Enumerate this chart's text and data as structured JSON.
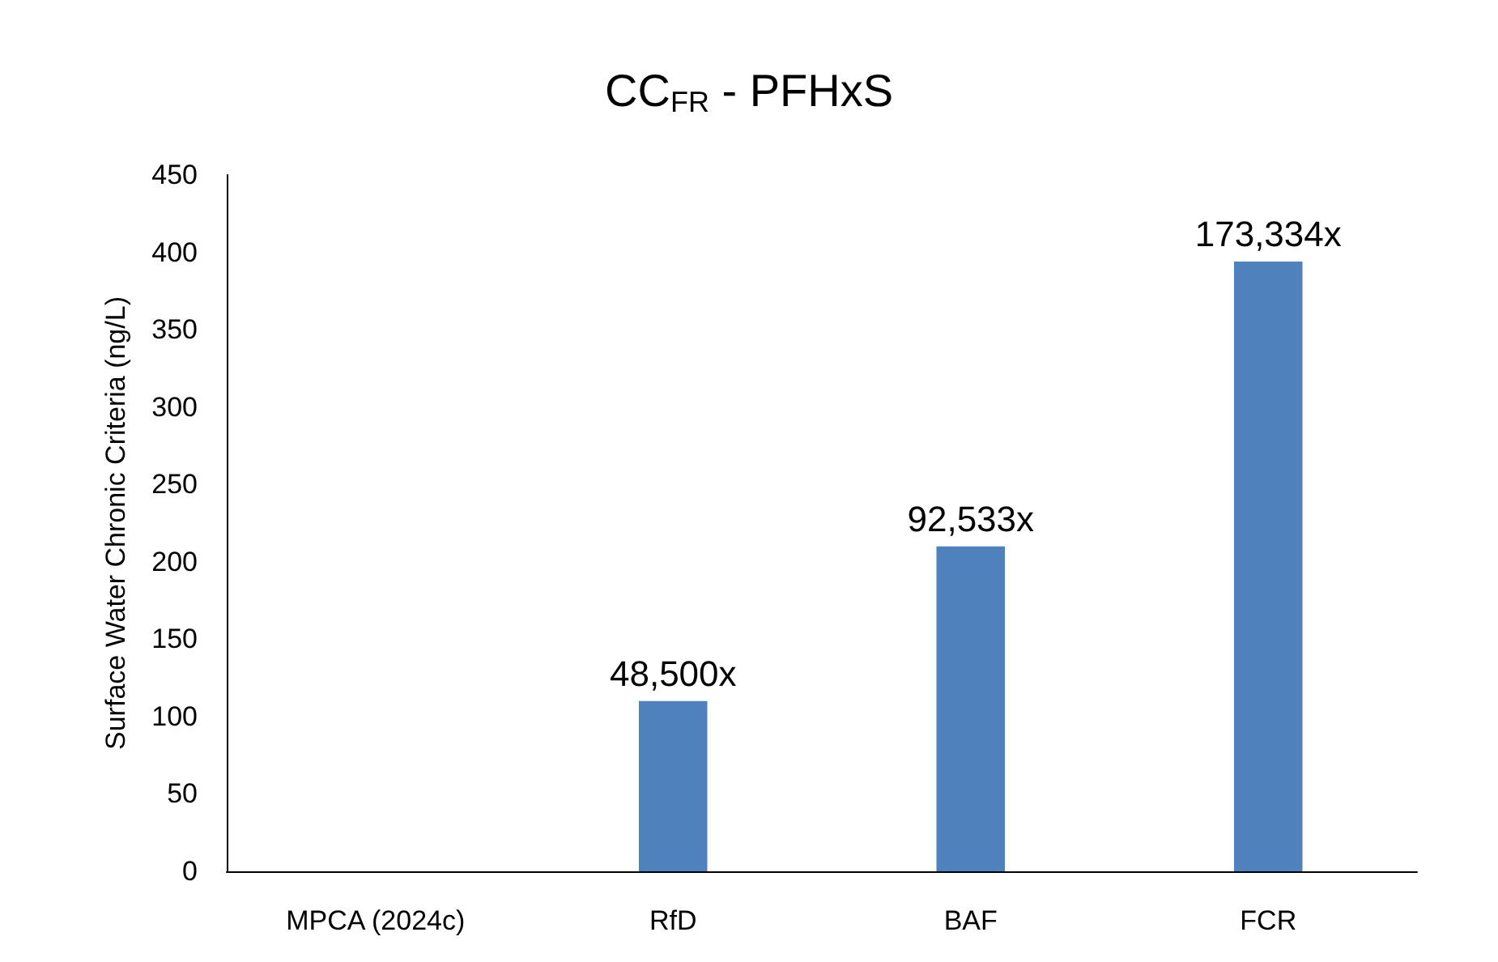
{
  "chart_data": {
    "type": "bar",
    "title": "CC$_{FR}$ - PFHxS",
    "ylabel": "Surface Water Chronic Criteria (ng/L)",
    "categories": [
      "MPCA (2024c)",
      "RfD",
      "BAF",
      "FCR"
    ],
    "values": [
      0,
      110,
      210,
      394
    ],
    "annotations": [
      {
        "text": "48,500x",
        "x": "RfD",
        "y": 110
      },
      {
        "text": "92,533x",
        "x": "BAF",
        "y": 210
      },
      {
        "text": "173,334x",
        "x": "FCR",
        "y": 394
      }
    ],
    "color": "#4f81bd",
    "ylim": [
      0,
      450
    ],
    "yticks": [
      0,
      50,
      100,
      150,
      200,
      250,
      300,
      350,
      400,
      450
    ],
    "grid": false
  }
}
